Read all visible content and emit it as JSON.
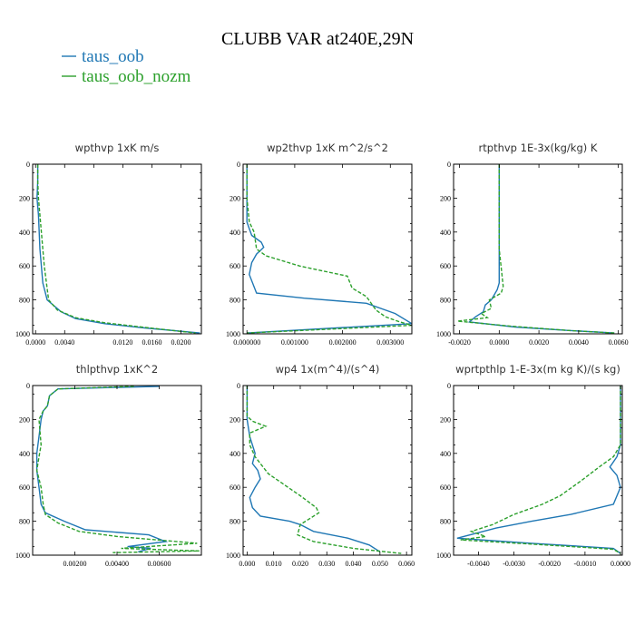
{
  "figure_title": "CLUBB VAR at240E,29N",
  "legend": [
    {
      "label": "taus_oob",
      "color": "#1f77b4"
    },
    {
      "label": "taus_oob_nozm",
      "color": "#2ca02c"
    }
  ],
  "chart_data": [
    {
      "type": "line",
      "title": "wpthvp   1xK m/s",
      "xlim": [
        -0.0004,
        0.0228
      ],
      "ylim": [
        1000,
        0
      ],
      "xticks": [
        "0.0000",
        "0.0040",
        "0.0120",
        "0.0160",
        "0.0200"
      ],
      "xtick_values": [
        0.0,
        0.004,
        0.008,
        0.012,
        0.016,
        0.02
      ],
      "xtick_labels": [
        "0.0000",
        "0.0040",
        "",
        "0.0120",
        "0.0160",
        "0.0200"
      ],
      "yticks": [
        0,
        200,
        400,
        600,
        800,
        1000
      ],
      "series": [
        {
          "name": "taus_oob",
          "color": "#1f77b4",
          "dashed": false,
          "x": [
            0.0003,
            0.0003,
            0.0002,
            0.0004,
            0.0005,
            0.0006,
            0.0008,
            0.001,
            0.0016,
            0.0035,
            0.0055,
            0.0095,
            0.015,
            0.0226
          ],
          "y": [
            0,
            100,
            200,
            300,
            400,
            500,
            600,
            700,
            800,
            870,
            910,
            940,
            965,
            995
          ]
        },
        {
          "name": "taus_oob_nozm",
          "color": "#2ca02c",
          "dashed": true,
          "x": [
            0.0003,
            0.0003,
            0.0004,
            0.0006,
            0.0008,
            0.001,
            0.0012,
            0.0015,
            0.0018,
            0.003,
            0.0055,
            0.0095,
            0.015,
            0.022
          ],
          "y": [
            0,
            100,
            200,
            300,
            400,
            500,
            600,
            700,
            800,
            860,
            905,
            935,
            962,
            995
          ]
        }
      ]
    },
    {
      "type": "line",
      "title": "wp2thvp   1xK m^2/s^2",
      "xlim": [
        -8e-05,
        0.00345
      ],
      "ylim": [
        1000,
        0
      ],
      "xtick_values": [
        0.0,
        0.001,
        0.002,
        0.003
      ],
      "xtick_labels": [
        "0.000000",
        "0.001000",
        "0.002000",
        "0.003000"
      ],
      "yticks": [
        0,
        200,
        400,
        600,
        800,
        1000
      ],
      "series": [
        {
          "name": "taus_oob",
          "color": "#1f77b4",
          "dashed": false,
          "x": [
            0.0,
            0.0,
            0.0,
            5e-05,
            0.0001,
            0.0003,
            0.00035,
            0.0002,
            0.0001,
            5e-05,
            0.0002,
            0.0012,
            0.0025,
            0.0031,
            0.00345,
            0.0
          ],
          "y": [
            0,
            200,
            340,
            380,
            420,
            460,
            490,
            530,
            580,
            650,
            760,
            790,
            820,
            880,
            940,
            995
          ]
        },
        {
          "name": "taus_oob_nozm",
          "color": "#2ca02c",
          "dashed": true,
          "x": [
            0.0,
            0.0,
            5e-05,
            0.00015,
            0.0002,
            0.0004,
            0.0011,
            0.0021,
            0.0022,
            0.0025,
            0.0027,
            0.0029,
            0.0032,
            0.00345,
            0.0
          ],
          "y": [
            0,
            200,
            340,
            400,
            500,
            540,
            600,
            660,
            730,
            780,
            860,
            900,
            930,
            950,
            995
          ]
        }
      ]
    },
    {
      "type": "line",
      "title": "rtpthvp   1E-3x(kg/kg) K",
      "xlim": [
        -0.0023,
        0.0062
      ],
      "ylim": [
        1000,
        0
      ],
      "xtick_values": [
        -0.002,
        0.0,
        0.002,
        0.004,
        0.006
      ],
      "xtick_labels": [
        "-0.0020",
        "0.0000",
        "0.0020",
        "0.0040",
        "0.0060"
      ],
      "yticks": [
        0,
        200,
        400,
        600,
        800,
        1000
      ],
      "series": [
        {
          "name": "taus_oob",
          "color": "#1f77b4",
          "dashed": false,
          "x": [
            0.0,
            0.0,
            0.0,
            0.0,
            -0.0001,
            -0.0004,
            -0.0007,
            -0.0008,
            -0.0012,
            -0.0015,
            0.0008,
            0.0035,
            0.0058
          ],
          "y": [
            0,
            300,
            500,
            700,
            740,
            800,
            830,
            870,
            900,
            930,
            960,
            980,
            995
          ]
        },
        {
          "name": "taus_oob_nozm",
          "color": "#2ca02c",
          "dashed": true,
          "x": [
            0.0,
            0.0,
            0.0,
            0.0002,
            0.0001,
            -0.0005,
            -0.0004,
            -0.0009,
            -0.0006,
            -0.0021,
            0.0006,
            0.0035,
            0.0058
          ],
          "y": [
            0,
            300,
            500,
            720,
            760,
            800,
            850,
            880,
            905,
            925,
            955,
            980,
            995
          ]
        }
      ]
    },
    {
      "type": "line",
      "title": "thlpthvp   1xK^2",
      "xlim": [
        0.0,
        0.008
      ],
      "ylim": [
        1000,
        0
      ],
      "xtick_values": [
        0.002,
        0.004,
        0.006
      ],
      "xtick_labels": [
        "0.00200",
        "0.00400",
        "0.00600"
      ],
      "yticks": [
        0,
        200,
        400,
        600,
        800,
        1000
      ],
      "series": [
        {
          "name": "taus_oob",
          "color": "#1f77b4",
          "dashed": false,
          "x": [
            0.006,
            0.0012,
            0.0008,
            0.0007,
            0.0005,
            0.0004,
            0.0003,
            0.0002,
            0.0002,
            0.0003,
            0.0004,
            0.0006,
            0.0015,
            0.0025,
            0.0055,
            0.0063,
            0.0045,
            0.0056,
            0.005
          ],
          "y": [
            5,
            20,
            60,
            120,
            150,
            200,
            300,
            400,
            500,
            600,
            700,
            750,
            800,
            850,
            880,
            920,
            950,
            960,
            980
          ]
        },
        {
          "name": "taus_oob_nozm",
          "color": "#2ca02c",
          "dashed": true,
          "x": [
            0.0048,
            0.0012,
            0.0008,
            0.0007,
            0.0005,
            0.0003,
            0.0004,
            0.0003,
            0.0002,
            0.0004,
            0.0005,
            0.0006,
            0.0012,
            0.0022,
            0.004,
            0.0078,
            0.0042,
            0.0079,
            0.0038
          ],
          "y": [
            5,
            20,
            60,
            120,
            150,
            200,
            350,
            420,
            500,
            600,
            700,
            760,
            810,
            860,
            890,
            930,
            960,
            975,
            985
          ]
        }
      ]
    },
    {
      "type": "line",
      "title": "wp4   1x(m^4)/(s^4)",
      "xlim": [
        -0.0015,
        0.062
      ],
      "ylim": [
        1000,
        0
      ],
      "xtick_values": [
        0.0,
        0.01,
        0.02,
        0.03,
        0.04,
        0.05,
        0.06
      ],
      "xtick_labels": [
        "0.000",
        "0.010",
        "0.020",
        "0.030",
        "0.040",
        "0.050",
        "0.060"
      ],
      "yticks": [
        0,
        200,
        400,
        600,
        800,
        1000
      ],
      "series": [
        {
          "name": "taus_oob",
          "color": "#1f77b4",
          "dashed": false,
          "x": [
            0.0,
            0.0,
            0.001,
            0.003,
            0.002,
            0.004,
            0.005,
            0.003,
            0.001,
            0.002,
            0.005,
            0.016,
            0.02,
            0.025,
            0.038,
            0.046,
            0.05
          ],
          "y": [
            0,
            200,
            300,
            400,
            460,
            500,
            550,
            600,
            660,
            720,
            770,
            800,
            820,
            860,
            900,
            940,
            980
          ]
        },
        {
          "name": "taus_oob_nozm",
          "color": "#2ca02c",
          "dashed": true,
          "x": [
            0.0,
            0.0,
            0.002,
            0.007,
            0.001,
            0.001,
            0.003,
            0.008,
            0.02,
            0.026,
            0.027,
            0.02,
            0.019,
            0.025,
            0.04,
            0.058
          ],
          "y": [
            0,
            180,
            210,
            240,
            280,
            350,
            420,
            520,
            650,
            720,
            750,
            820,
            880,
            920,
            960,
            990
          ]
        }
      ]
    },
    {
      "type": "line",
      "title": "wprtpthlp   1-E-3x(m kg K)/(s kg)",
      "xlim": [
        -0.0047,
        5e-05
      ],
      "ylim": [
        1000,
        0
      ],
      "xtick_values": [
        -0.004,
        -0.003,
        -0.002,
        -0.001,
        0.0
      ],
      "xtick_labels": [
        "-0.0040",
        "-0.0030",
        "-0.0020",
        "-0.0010",
        "0.0000"
      ],
      "yticks": [
        0,
        200,
        400,
        600,
        800,
        1000
      ],
      "series": [
        {
          "name": "taus_oob",
          "color": "#1f77b4",
          "dashed": false,
          "x": [
            0.0,
            0.0,
            0.0,
            -0.0001,
            -0.0003,
            -0.0001,
            0.0,
            -0.0002,
            -0.0014,
            -0.0025,
            -0.0035,
            -0.0046,
            -0.0025,
            -0.0002,
            0.0
          ],
          "y": [
            0,
            200,
            350,
            420,
            480,
            530,
            600,
            700,
            760,
            800,
            840,
            900,
            930,
            960,
            990
          ]
        },
        {
          "name": "taus_oob_nozm",
          "color": "#2ca02c",
          "dashed": true,
          "x": [
            0.0,
            0.0,
            0.0,
            -0.0002,
            -0.0006,
            -0.0011,
            -0.0017,
            -0.0022,
            -0.003,
            -0.0036,
            -0.0042,
            -0.0038,
            -0.0045,
            -0.0025,
            -0.0002,
            0.0
          ],
          "y": [
            0,
            200,
            350,
            420,
            480,
            560,
            650,
            700,
            760,
            820,
            860,
            890,
            910,
            935,
            965,
            990
          ]
        }
      ]
    }
  ]
}
